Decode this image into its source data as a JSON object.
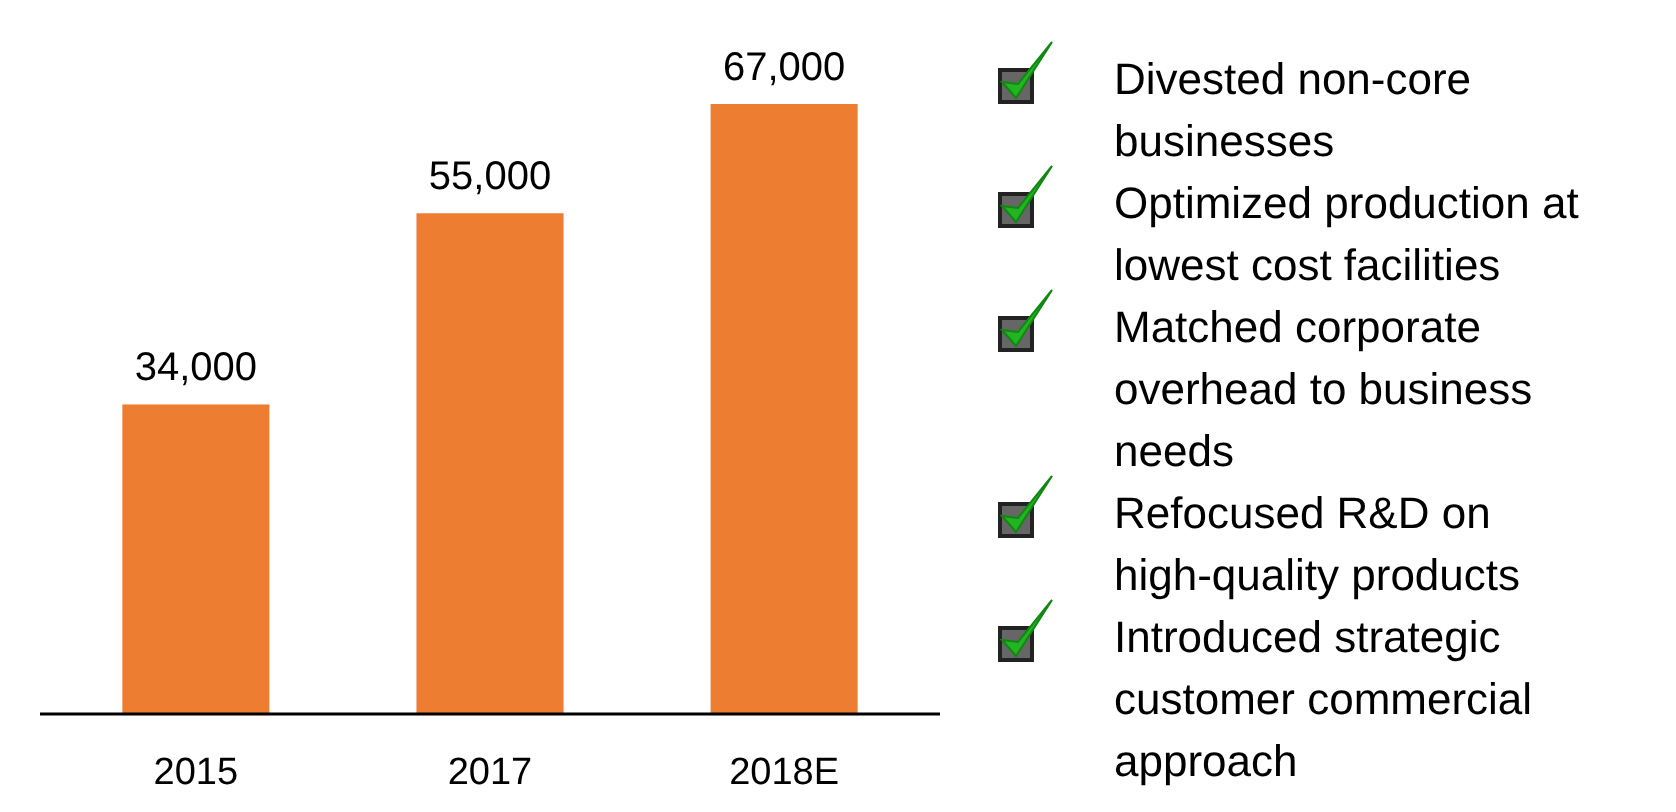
{
  "chart_data": {
    "type": "bar",
    "categories": [
      "2015",
      "2017",
      "2018E"
    ],
    "values": [
      34000,
      55000,
      67000
    ],
    "color": "#ed7d31",
    "data_labels": true,
    "value_labels": [
      "34,000",
      "55,000",
      "67,000"
    ],
    "annotations": [
      "Divested non-core businesses",
      "Optimized production at lowest cost facilities",
      "Matched corporate overhead to business needs",
      "Refocused R&D on high-quality products",
      "Introduced strategic customer commercial approach"
    ]
  }
}
